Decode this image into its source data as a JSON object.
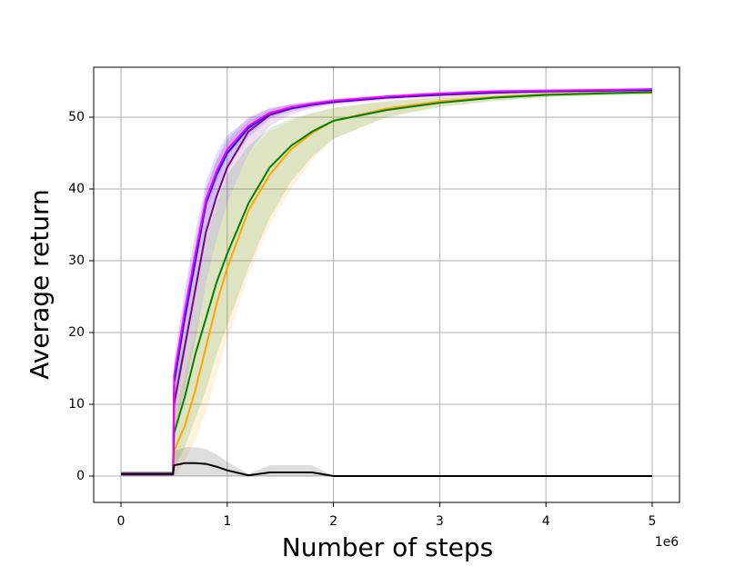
{
  "chart_data": {
    "type": "line",
    "x_label": "Number of steps",
    "y_label": "Average return",
    "x_offset_label": "1e6",
    "x": [
      0,
      0.49,
      0.5,
      0.6,
      0.7,
      0.8,
      0.9,
      1.0,
      1.2,
      1.4,
      1.6,
      1.8,
      2.0,
      2.5,
      3.0,
      3.5,
      4.0,
      4.5,
      5.0
    ],
    "series": [
      {
        "color": "#ffa500",
        "values": [
          0.3,
          0.3,
          3.5,
          7,
          12,
          18,
          24,
          29,
          37,
          42,
          45.5,
          47.8,
          49.5,
          51.2,
          52.2,
          52.8,
          53.2,
          53.4,
          53.4
        ],
        "lower": [
          0,
          0,
          0,
          2,
          5,
          9,
          14,
          19,
          28,
          35,
          40,
          44,
          47,
          50,
          51.5,
          52.3,
          52.8,
          53,
          53.1
        ],
        "upper": [
          0.6,
          0.6,
          8,
          14,
          20,
          27,
          33,
          38,
          45,
          48,
          49.5,
          50.5,
          51.3,
          52.3,
          52.9,
          53.3,
          53.6,
          53.8,
          53.8
        ]
      },
      {
        "color": "#008000",
        "values": [
          0.3,
          0.3,
          6,
          11,
          17,
          22,
          27,
          31,
          38,
          43,
          46,
          48,
          49.5,
          51,
          52,
          52.7,
          53.1,
          53.3,
          53.5
        ],
        "lower": [
          0,
          0,
          1,
          4,
          8,
          12,
          17,
          21,
          29,
          36,
          41,
          44.5,
          47,
          50,
          51.4,
          52.2,
          52.8,
          53,
          53.2
        ],
        "upper": [
          0.6,
          0.6,
          12,
          19,
          26,
          33,
          38,
          42,
          46,
          48.5,
          49.8,
          50.6,
          51.3,
          52.2,
          52.8,
          53.2,
          53.5,
          53.7,
          53.8
        ]
      },
      {
        "color": "#800080",
        "values": [
          0.3,
          0.3,
          10,
          18,
          26,
          34,
          39,
          43,
          48,
          50.3,
          51.2,
          51.7,
          52.1,
          52.7,
          53.1,
          53.4,
          53.6,
          53.7,
          53.8
        ],
        "lower": [
          0,
          0,
          6,
          12,
          19,
          27,
          33,
          38,
          45,
          48.8,
          50.4,
          51.2,
          51.7,
          52.4,
          52.9,
          53.2,
          53.4,
          53.5,
          53.6
        ],
        "upper": [
          0.6,
          0.6,
          14,
          23,
          32,
          40,
          44,
          47,
          50,
          51.3,
          51.8,
          52.1,
          52.4,
          52.9,
          53.3,
          53.6,
          53.8,
          53.9,
          54
        ]
      },
      {
        "color": "#0000ff",
        "values": [
          0.3,
          0.3,
          13,
          22,
          30,
          38,
          42,
          45,
          48.5,
          50.5,
          51.3,
          51.8,
          52.2,
          52.8,
          53.2,
          53.5,
          53.6,
          53.7,
          53.8
        ],
        "lower": [
          0,
          0,
          10,
          18,
          26,
          34,
          39,
          43,
          47.2,
          49.8,
          50.8,
          51.4,
          51.9,
          52.6,
          53,
          53.3,
          53.4,
          53.5,
          53.6
        ],
        "upper": [
          0.6,
          0.6,
          16,
          26,
          34,
          41,
          45,
          47.5,
          49.8,
          51.2,
          51.8,
          52.2,
          52.5,
          53,
          53.4,
          53.7,
          53.8,
          53.9,
          54
        ]
      },
      {
        "color": "#ff00ff",
        "values": [
          0.3,
          0.3,
          14,
          23,
          31,
          38.5,
          42.5,
          45.5,
          48.8,
          50.6,
          51.4,
          51.9,
          52.3,
          52.9,
          53.3,
          53.6,
          53.7,
          53.8,
          53.9
        ],
        "lower": [
          0,
          0,
          12,
          21,
          29,
          37,
          41,
          44.5,
          48.2,
          50.2,
          51,
          51.6,
          52,
          52.7,
          53.1,
          53.4,
          53.5,
          53.6,
          53.7
        ],
        "upper": [
          0.6,
          0.6,
          16,
          25,
          33,
          40,
          44,
          46.5,
          49.4,
          51,
          51.8,
          52.2,
          52.6,
          53.1,
          53.5,
          53.8,
          53.9,
          54,
          54.1
        ]
      },
      {
        "color": "#000000",
        "values": [
          0.3,
          0.3,
          1.5,
          1.8,
          1.8,
          1.7,
          1.3,
          0.8,
          0.1,
          0.5,
          0.5,
          0.5,
          0,
          0,
          0,
          0,
          0,
          0,
          0
        ],
        "lower": [
          0,
          0,
          0,
          0,
          0,
          0,
          0,
          0,
          0,
          0,
          0,
          0,
          0,
          0,
          0,
          0,
          0,
          0,
          0
        ],
        "upper": [
          0.6,
          0.6,
          3.5,
          4,
          4,
          3.8,
          3,
          2,
          0.3,
          1.5,
          1.5,
          1.5,
          0,
          0,
          0,
          0,
          0,
          0,
          0
        ]
      }
    ],
    "xlim": [
      -0.257,
      5.257
    ],
    "ylim": [
      -3.67,
      56.96
    ],
    "xticks": [
      0,
      1,
      2,
      3,
      4,
      5
    ],
    "yticks": [
      0,
      10,
      20,
      30,
      40,
      50
    ],
    "grid": true
  }
}
